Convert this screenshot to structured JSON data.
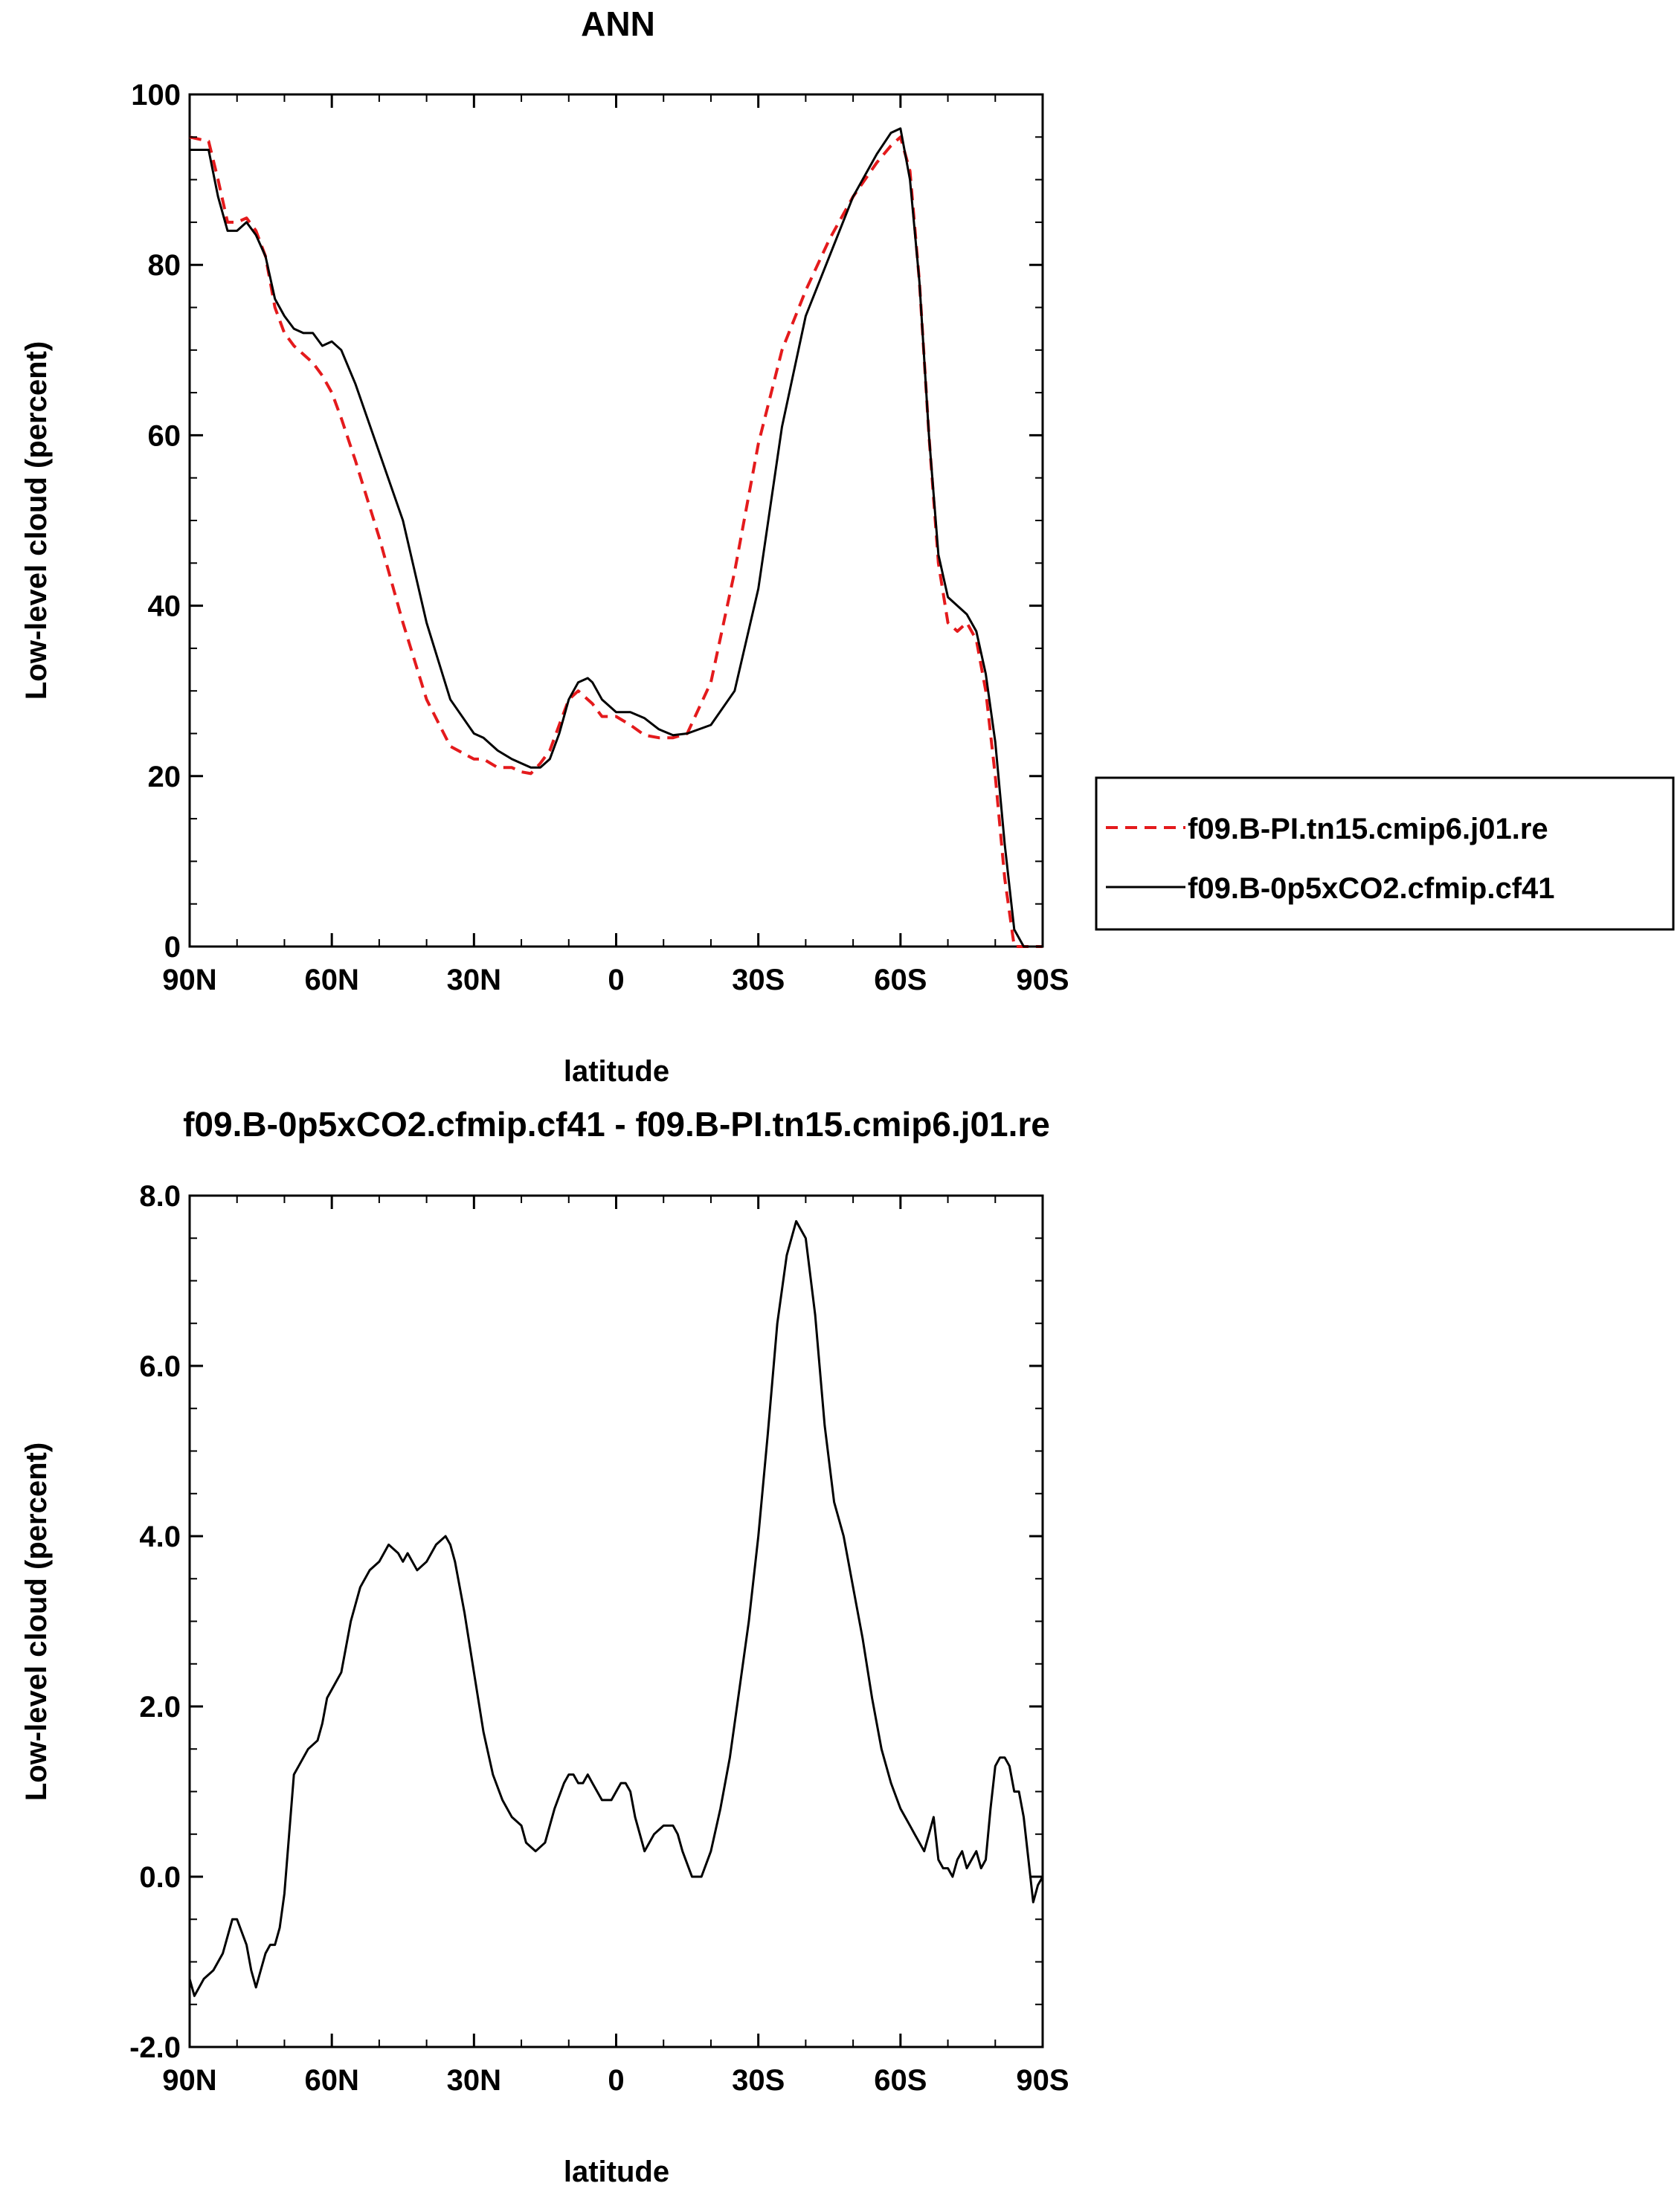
{
  "chart_data": [
    {
      "type": "line",
      "title": "ANN",
      "xlabel": "latitude",
      "ylabel": "Low-level cloud (percent)",
      "xlim": [
        90,
        -90
      ],
      "ylim": [
        0,
        100
      ],
      "xticks": [
        90,
        60,
        30,
        0,
        -30,
        -60,
        -90
      ],
      "xtick_labels": [
        "90N",
        "60N",
        "30N",
        "0",
        "30S",
        "60S",
        "90S"
      ],
      "yticks": [
        0,
        20,
        40,
        60,
        80,
        100
      ],
      "ytick_labels": [
        "0",
        "20",
        "40",
        "60",
        "80",
        "100"
      ],
      "legend_position": "right",
      "series": [
        {
          "name": "f09.B-PI.tn15.cmip6.j01.re",
          "color": "#e41a1c",
          "style": "dashed",
          "x": [
            90,
            86,
            84,
            82,
            80,
            78,
            76,
            74,
            72,
            70,
            68,
            66,
            64,
            62,
            60,
            58,
            55,
            50,
            45,
            40,
            35,
            30,
            28,
            25,
            22,
            20,
            18,
            16,
            14,
            12,
            10,
            8,
            6,
            5,
            3,
            0,
            -3,
            -6,
            -9,
            -12,
            -15,
            -20,
            -25,
            -30,
            -35,
            -40,
            -45,
            -50,
            -55,
            -58,
            -60,
            -62,
            -64,
            -66,
            -68,
            -70,
            -72,
            -74,
            -76,
            -78,
            -80,
            -82,
            -84,
            -86,
            -88,
            -90
          ],
          "y": [
            95,
            94.5,
            90,
            85,
            85,
            85.5,
            84,
            81,
            75,
            72,
            70.5,
            69.5,
            68.5,
            67,
            65,
            62,
            57,
            48,
            38,
            29,
            23.5,
            22,
            22,
            21,
            21,
            20.5,
            20.3,
            21.5,
            23,
            26,
            29,
            30,
            29,
            28.5,
            27,
            27,
            26,
            24.8,
            24.5,
            24.5,
            25,
            31,
            44,
            59,
            70,
            77,
            83,
            88,
            92,
            94,
            95,
            91,
            78,
            60,
            45,
            38,
            37,
            38,
            36,
            30,
            20,
            8,
            0,
            0,
            0,
            0
          ]
        },
        {
          "name": "f09.B-0p5xCO2.cfmip.cf41",
          "color": "#000000",
          "style": "solid",
          "x": [
            90,
            86,
            84,
            82,
            80,
            78,
            76,
            74,
            72,
            70,
            68,
            66,
            64,
            62,
            60,
            58,
            55,
            50,
            45,
            40,
            35,
            30,
            28,
            25,
            22,
            20,
            18,
            16,
            14,
            12,
            10,
            8,
            6,
            5,
            3,
            0,
            -3,
            -6,
            -9,
            -12,
            -15,
            -20,
            -25,
            -30,
            -35,
            -40,
            -45,
            -50,
            -55,
            -58,
            -60,
            -62,
            -64,
            -66,
            -68,
            -70,
            -72,
            -74,
            -76,
            -78,
            -80,
            -82,
            -84,
            -86,
            -88,
            -90
          ],
          "y": [
            93.5,
            93.5,
            88,
            84,
            84,
            85,
            83.5,
            81,
            76,
            74,
            72.5,
            72,
            72,
            70.5,
            71,
            70,
            66,
            58,
            50,
            38,
            29,
            25,
            24.5,
            23,
            22,
            21.5,
            21,
            21,
            22,
            25,
            29,
            31,
            31.5,
            31,
            29,
            27.5,
            27.5,
            26.8,
            25.5,
            24.8,
            25,
            26,
            30,
            42,
            61,
            74,
            81,
            88,
            93,
            95.5,
            96,
            90,
            78,
            60,
            46,
            41,
            40,
            39,
            37,
            32,
            24,
            12,
            2,
            0,
            0,
            0
          ]
        }
      ]
    },
    {
      "type": "line",
      "title": "f09.B-0p5xCO2.cfmip.cf41 - f09.B-PI.tn15.cmip6.j01.re",
      "xlabel": "latitude",
      "ylabel": "Low-level cloud (percent)",
      "xlim": [
        90,
        -90
      ],
      "ylim": [
        -2,
        8
      ],
      "xticks": [
        90,
        60,
        30,
        0,
        -30,
        -60,
        -90
      ],
      "xtick_labels": [
        "90N",
        "60N",
        "30N",
        "0",
        "30S",
        "60S",
        "90S"
      ],
      "yticks": [
        -2,
        0,
        2,
        4,
        6,
        8
      ],
      "ytick_labels": [
        "-2.0",
        "0.0",
        "2.0",
        "4.0",
        "6.0",
        "8.0"
      ],
      "series": [
        {
          "color": "#000000",
          "style": "solid",
          "x": [
            90,
            89,
            87,
            85,
            83,
            82,
            81,
            80,
            78,
            77,
            76,
            75,
            74,
            73,
            72,
            71,
            70,
            69,
            68,
            67,
            65,
            63,
            62,
            61,
            60,
            58,
            56,
            54,
            52,
            50,
            48,
            46,
            45,
            44,
            42,
            40,
            38,
            36,
            35,
            34,
            32,
            30,
            28,
            26,
            24,
            22,
            20,
            19,
            17,
            15,
            13,
            11,
            10,
            9,
            8,
            7,
            6,
            5,
            4,
            3,
            2,
            1,
            0,
            -1,
            -2,
            -3,
            -4,
            -5,
            -6,
            -8,
            -10,
            -12,
            -13,
            -14,
            -16,
            -18,
            -20,
            -22,
            -24,
            -26,
            -28,
            -30,
            -32,
            -34,
            -36,
            -38,
            -40,
            -42,
            -44,
            -46,
            -48,
            -50,
            -52,
            -54,
            -56,
            -58,
            -60,
            -62,
            -63,
            -64,
            -65,
            -66,
            -67,
            -68,
            -69,
            -70,
            -71,
            -72,
            -73,
            -74,
            -75,
            -76,
            -77,
            -78,
            -79,
            -80,
            -81,
            -82,
            -83,
            -84,
            -85,
            -86,
            -87,
            -88,
            -89,
            -90
          ],
          "y": [
            -1.2,
            -1.4,
            -1.2,
            -1.1,
            -0.9,
            -0.7,
            -0.5,
            -0.5,
            -0.8,
            -1.1,
            -1.3,
            -1.1,
            -0.9,
            -0.8,
            -0.8,
            -0.6,
            -0.2,
            0.5,
            1.2,
            1.3,
            1.5,
            1.6,
            1.8,
            2.1,
            2.2,
            2.4,
            3.0,
            3.4,
            3.6,
            3.7,
            3.9,
            3.8,
            3.7,
            3.8,
            3.6,
            3.7,
            3.9,
            4.0,
            3.9,
            3.7,
            3.1,
            2.4,
            1.7,
            1.2,
            0.9,
            0.7,
            0.6,
            0.4,
            0.3,
            0.4,
            0.8,
            1.1,
            1.2,
            1.2,
            1.1,
            1.1,
            1.2,
            1.1,
            1.0,
            0.9,
            0.9,
            0.9,
            1.0,
            1.1,
            1.1,
            1.0,
            0.7,
            0.5,
            0.3,
            0.5,
            0.6,
            0.6,
            0.5,
            0.3,
            0.0,
            0.0,
            0.3,
            0.8,
            1.4,
            2.2,
            3.0,
            4.0,
            5.2,
            6.5,
            7.3,
            7.7,
            7.5,
            6.6,
            5.3,
            4.4,
            4.0,
            3.4,
            2.8,
            2.1,
            1.5,
            1.1,
            0.8,
            0.6,
            0.5,
            0.4,
            0.3,
            0.5,
            0.7,
            0.2,
            0.1,
            0.1,
            0.0,
            0.2,
            0.3,
            0.1,
            0.2,
            0.3,
            0.1,
            0.2,
            0.8,
            1.3,
            1.4,
            1.4,
            1.3,
            1.0,
            1.0,
            0.7,
            0.2,
            -0.3,
            -0.1,
            0.0
          ]
        }
      ]
    }
  ]
}
